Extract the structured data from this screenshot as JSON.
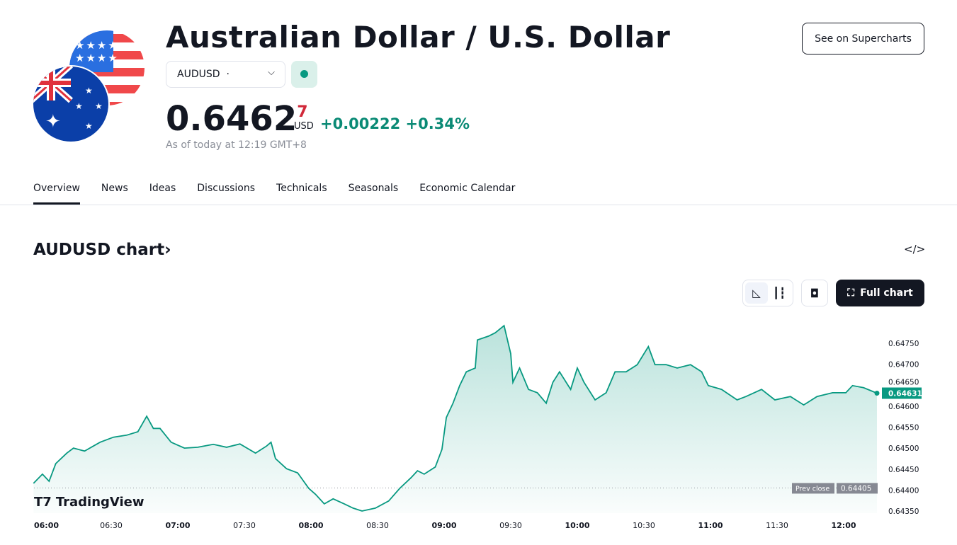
{
  "header": {
    "title": "Australian Dollar / U.S. Dollar",
    "supercharts_label": "See on Supercharts",
    "symbol": "AUDUSD",
    "symbol_dot": "·",
    "price_main": "0.6462",
    "price_last_digit": "7",
    "currency": "USD",
    "change": "+0.00222 +0.34%",
    "as_of": "As of today at 12:19 GMT+8",
    "flag_icons": [
      "us-flag-icon",
      "australia-flag-icon"
    ],
    "market_status": "open"
  },
  "tabs": [
    "Overview",
    "News",
    "Ideas",
    "Discussions",
    "Technicals",
    "Seasonals",
    "Economic Calendar"
  ],
  "chart_section": {
    "title": "AUDUSD chart",
    "chevron": "›",
    "embed_icon": "</>",
    "full_chart_label": "Full chart",
    "logo": "TradingView"
  },
  "chart_data": {
    "type": "area",
    "xlabel": "",
    "ylabel": "",
    "x_ticks": [
      "06:00",
      "06:30",
      "07:00",
      "07:30",
      "08:00",
      "08:30",
      "09:00",
      "09:30",
      "10:00",
      "10:30",
      "11:00",
      "11:30",
      "12:00"
    ],
    "y_ticks": [
      "0.64350",
      "0.64400",
      "0.64450",
      "0.64500",
      "0.64550",
      "0.64600",
      "0.64650",
      "0.64700",
      "0.64750"
    ],
    "ylim": [
      0.6435,
      0.6475
    ],
    "grid": false,
    "last_price_label": "0.64631",
    "prev_close": {
      "label": "Prev close",
      "value": "0.64405"
    },
    "colors": {
      "line": "#089981",
      "last_badge": "#089981",
      "prev_close_badge": "#868993"
    },
    "series": [
      {
        "x": [
          "05:55",
          "05:59",
          "06:02",
          "06:05",
          "06:10",
          "06:13",
          "06:18",
          "06:25",
          "06:31",
          "06:37",
          "06:42",
          "06:46",
          "06:49",
          "06:52",
          "06:57",
          "07:03",
          "07:09",
          "07:16",
          "07:22",
          "07:28",
          "07:35",
          "07:40",
          "07:42",
          "07:44",
          "07:49",
          "07:54",
          "07:59",
          "08:02",
          "08:06",
          "08:10",
          "08:15",
          "08:19",
          "08:23",
          "08:29",
          "08:35",
          "08:40",
          "08:45",
          "08:48",
          "08:51",
          "08:56",
          "08:59",
          "09:01",
          "09:04",
          "09:07",
          "09:10",
          "09:14",
          "09:15",
          "09:20",
          "09:23",
          "09:27",
          "09:30",
          "09:31",
          "09:34",
          "09:38",
          "09:42",
          "09:46",
          "09:49",
          "09:52",
          "09:57",
          "10:00",
          "10:03",
          "10:08",
          "10:13",
          "10:17",
          "10:22",
          "10:27",
          "10:32",
          "10:35",
          "10:40",
          "10:45",
          "10:51",
          "10:56",
          "10:59",
          "11:05",
          "11:12",
          "11:16",
          "11:23",
          "11:29",
          "11:36",
          "11:42",
          "11:48",
          "11:55",
          "12:01",
          "12:04",
          "12:09",
          "12:15"
        ],
        "values": [
          0.64416,
          0.64438,
          0.64421,
          0.64463,
          0.64488,
          0.645,
          0.64493,
          0.64514,
          0.64526,
          0.64531,
          0.64539,
          0.64576,
          0.64547,
          0.64547,
          0.64514,
          0.645,
          0.64502,
          0.64509,
          0.64502,
          0.6451,
          0.64488,
          0.64505,
          0.64514,
          0.64475,
          0.64451,
          0.64441,
          0.64404,
          0.6439,
          0.64367,
          0.64379,
          0.64367,
          0.64357,
          0.6435,
          0.64357,
          0.64374,
          0.64404,
          0.64429,
          0.64446,
          0.64438,
          0.64455,
          0.64497,
          0.64573,
          0.64607,
          0.64649,
          0.64682,
          0.64691,
          0.64758,
          0.64767,
          0.64775,
          0.64792,
          0.64725,
          0.64657,
          0.64691,
          0.6464,
          0.64632,
          0.64607,
          0.64657,
          0.64682,
          0.6464,
          0.64691,
          0.64657,
          0.64615,
          0.64632,
          0.64682,
          0.64682,
          0.64699,
          0.64742,
          0.64699,
          0.64699,
          0.64691,
          0.64699,
          0.64682,
          0.64649,
          0.6464,
          0.64615,
          0.64623,
          0.6464,
          0.64615,
          0.64623,
          0.64603,
          0.64623,
          0.64632,
          0.64632,
          0.64649,
          0.64644,
          0.64631
        ]
      }
    ]
  }
}
